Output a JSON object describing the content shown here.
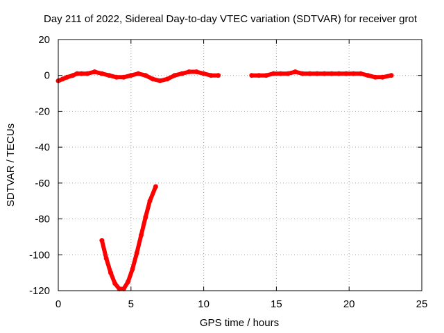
{
  "chart_data": {
    "type": "line",
    "title": "Day 211 of 2022, Sidereal Day-to-day VTEC variation (SDTVAR) for receiver grot",
    "xlabel": "GPS time / hours",
    "ylabel": "SDTVAR / TECUs",
    "xlim": [
      0,
      25
    ],
    "ylim": [
      -120,
      20
    ],
    "xticks": [
      0,
      5,
      10,
      15,
      20,
      25
    ],
    "yticks": [
      -120,
      -100,
      -80,
      -60,
      -40,
      -20,
      0,
      20
    ],
    "grid": true,
    "legend": "none",
    "series_color": "#ff0000",
    "series": [
      {
        "x": [
          0.0,
          0.3,
          0.6,
          1.0,
          1.3,
          1.6,
          2.0,
          2.5,
          3.0,
          3.5,
          4.0,
          4.5,
          5.0,
          5.5,
          6.0,
          6.5,
          7.0,
          7.5,
          8.0,
          8.5,
          9.0,
          9.5,
          10.0,
          10.5,
          11.0
        ],
        "y": [
          -3,
          -2,
          -1,
          0,
          1,
          1,
          1,
          2,
          1,
          0,
          -1,
          -1,
          0,
          1,
          0,
          -2,
          -3,
          -2,
          0,
          1,
          2,
          2,
          1,
          0,
          0
        ]
      },
      {
        "x": [
          13.3,
          13.8,
          14.3,
          14.8,
          15.3,
          15.8,
          16.3,
          16.8,
          17.3,
          17.8,
          18.3,
          18.8,
          19.3,
          19.8,
          20.3,
          20.8,
          21.3,
          21.8,
          22.3,
          22.9
        ],
        "y": [
          0,
          0,
          0,
          1,
          1,
          1,
          2,
          1,
          1,
          1,
          1,
          1,
          1,
          1,
          1,
          1,
          0,
          -1,
          -1,
          0
        ]
      },
      {
        "x": [
          3.0,
          3.3,
          3.6,
          3.9,
          4.2,
          4.5,
          4.8,
          5.1,
          5.4,
          5.7,
          6.0,
          6.3,
          6.7
        ],
        "y": [
          -92,
          -102,
          -110,
          -116,
          -119,
          -119,
          -115,
          -108,
          -99,
          -89,
          -79,
          -70,
          -62
        ]
      }
    ]
  }
}
